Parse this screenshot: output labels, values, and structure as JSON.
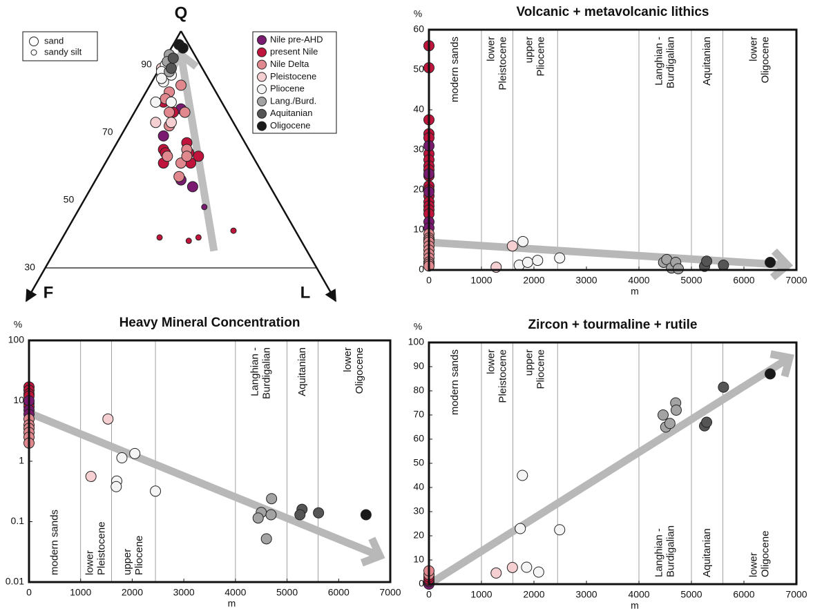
{
  "chart_data": [
    {
      "type": "ternary",
      "apex_labels": {
        "top": "Q",
        "left": "F",
        "right": "L"
      },
      "qticks": [
        90,
        70,
        50,
        30
      ],
      "texture_legend": [
        "sand",
        "sandy silt"
      ],
      "series": [
        {
          "name": "Nile pre-AHD",
          "color": "#7a1a70",
          "q": [
            77,
            69,
            56,
            54,
            48
          ],
          "f": [
            11.5,
            20,
            22,
            20,
            20
          ],
          "l": [
            11.5,
            11,
            22,
            26,
            32
          ],
          "texture": [
            "sand",
            "sand",
            "sand",
            "sand",
            "sandy silt"
          ]
        },
        {
          "name": "present Nile",
          "color": "#c0143c",
          "q": [
            79,
            76,
            67,
            64,
            65,
            64,
            61,
            63,
            61,
            39,
            38,
            39,
            41
          ],
          "f": [
            15,
            14,
            15,
            16,
            22,
            22,
            24,
            14,
            17,
            36,
            29,
            26,
            16
          ],
          "l": [
            6,
            10,
            18,
            20,
            13,
            14,
            15,
            23,
            22,
            25,
            33,
            35,
            43
          ],
          "texture": [
            "sand",
            "sand",
            "sand",
            "sand",
            "sand",
            "sand",
            "sand",
            "sand",
            "sand",
            "sandy silt",
            "sandy silt",
            "sandy silt",
            "sandy silt"
          ]
        },
        {
          "name": "Nile Delta",
          "color": "#e0888e",
          "q": [
            84,
            82,
            80,
            76,
            76,
            72,
            63,
            61,
            57,
            65,
            63
          ],
          "f": [
            8,
            12,
            14,
            15,
            11,
            17,
            22,
            19.5,
            22,
            16,
            17
          ],
          "l": [
            8,
            6,
            6,
            9,
            13,
            11,
            15,
            19.5,
            21,
            19,
            20
          ],
          "texture": [
            "sand",
            "sand",
            "sand",
            "sand",
            "sand",
            "sand",
            "sand",
            "sand",
            "sand",
            "sand",
            "sand"
          ]
        },
        {
          "name": "Pleistocene",
          "color": "#f6cfd2",
          "q": [
            73,
            89,
            73
          ],
          "f": [
            20,
            10.5,
            16
          ],
          "l": [
            7,
            0.5,
            11
          ],
          "texture": [
            "sand",
            "sand",
            "sand"
          ]
        },
        {
          "name": "Pliocene",
          "color": "#f5f5f5",
          "q": [
            90,
            88,
            87,
            85,
            79,
            79,
            86
          ],
          "f": [
            9,
            11,
            9,
            12,
            17,
            13,
            12
          ],
          "l": [
            1,
            1,
            4,
            3,
            4,
            8,
            2
          ],
          "texture": [
            "sand",
            "sand",
            "sand",
            "sand",
            "sand",
            "sand",
            "sand"
          ]
        },
        {
          "name": "Lang./Burd.",
          "color": "#a3a3a3",
          "q": [
            93,
            91,
            88
          ],
          "f": [
            6.5,
            8,
            9
          ],
          "l": [
            0.5,
            1,
            3
          ],
          "texture": [
            "sand",
            "sand",
            "sand"
          ]
        },
        {
          "name": "Aquitanian",
          "color": "#555555",
          "q": [
            89,
            92
          ],
          "f": [
            8,
            6
          ],
          "l": [
            3,
            2
          ],
          "texture": [
            "sand",
            "sand"
          ]
        },
        {
          "name": "Oligocene",
          "color": "#1a1a1a",
          "q": [
            96,
            95
          ],
          "f": [
            2.5,
            2
          ],
          "l": [
            1.5,
            3
          ],
          "texture": [
            "sand",
            "sand"
          ]
        }
      ],
      "trend_arrow": {
        "q": [
          35,
          93
        ],
        "f": [
          24,
          3.5
        ],
        "l": [
          41,
          3.5
        ]
      }
    },
    {
      "type": "scatter",
      "title": "Volcanic + metavolcanic lithics",
      "x_label": "m",
      "y_label": "%",
      "xlim": [
        0,
        7000
      ],
      "xticks": [
        0,
        1000,
        2000,
        3000,
        4000,
        5000,
        6000,
        7000
      ],
      "ylim": [
        0,
        60
      ],
      "yticks": [
        0,
        10,
        20,
        30,
        40,
        50,
        60
      ],
      "log_y": false,
      "zones": [
        {
          "lines": [
            "modern sands"
          ],
          "from": 0,
          "to": 1000,
          "anchor": "top"
        },
        {
          "lines": [
            "lower",
            "Pleistocene"
          ],
          "from": 1000,
          "to": 1600,
          "anchor": "top"
        },
        {
          "lines": [
            "upper",
            "Pliocene"
          ],
          "from": 1600,
          "to": 2450,
          "anchor": "top"
        },
        {
          "lines": [
            "Langhian -",
            "Burdigalian"
          ],
          "from": 4000,
          "to": 5000,
          "anchor": "top"
        },
        {
          "lines": [
            "Aquitanian"
          ],
          "from": 5000,
          "to": 5600,
          "anchor": "top"
        },
        {
          "lines": [
            "lower",
            "Oligocene"
          ],
          "from": 5600,
          "to": 7000,
          "anchor": "top"
        }
      ],
      "series": [
        {
          "color": "#c0143c",
          "x": [
            0,
            0,
            0,
            0,
            0,
            0,
            0,
            0,
            0,
            0,
            0,
            0,
            0,
            0,
            0,
            0,
            0
          ],
          "y": [
            56,
            50.5,
            37.5,
            34,
            33,
            29,
            27.5,
            26,
            25,
            23.5,
            21,
            20,
            18.5,
            17,
            16,
            15,
            14
          ]
        },
        {
          "color": "#7a1a70",
          "x": [
            0,
            0,
            0,
            0,
            0
          ],
          "y": [
            31,
            24,
            19.5,
            12,
            10.5
          ]
        },
        {
          "color": "#e0888e",
          "x": [
            0,
            0,
            0,
            0,
            0,
            0,
            0,
            0,
            0,
            0,
            0
          ],
          "y": [
            9,
            8,
            7.5,
            7,
            6,
            5,
            4,
            3,
            2,
            1.5,
            1
          ]
        },
        {
          "color": "#f6cfd2",
          "x": [
            1280,
            1590
          ],
          "y": [
            0.7,
            6
          ]
        },
        {
          "color": "#f5f5f5",
          "x": [
            1720,
            1790,
            1880,
            2070,
            2490
          ],
          "y": [
            1.2,
            7.1,
            1.9,
            2.4,
            3
          ]
        },
        {
          "color": "#a3a3a3",
          "x": [
            4470,
            4530,
            4620,
            4700,
            4750
          ],
          "y": [
            1.9,
            2.6,
            0.5,
            1.9,
            0.3
          ]
        },
        {
          "color": "#555555",
          "x": [
            5250,
            5290,
            5610
          ],
          "y": [
            0.9,
            2.2,
            1.2
          ]
        },
        {
          "color": "#1a1a1a",
          "x": [
            6500
          ],
          "y": [
            1.9
          ]
        }
      ],
      "trend_arrow": {
        "x": [
          0,
          6830
        ],
        "y": [
          6.9,
          1.2
        ]
      }
    },
    {
      "type": "scatter",
      "title": "Heavy Mineral Concentration",
      "x_label": "m",
      "y_label": "%",
      "xlim": [
        0,
        7000
      ],
      "xticks": [
        0,
        1000,
        2000,
        3000,
        4000,
        5000,
        6000,
        7000
      ],
      "ylim": [
        0.01,
        100
      ],
      "yticks": [
        0.01,
        0.1,
        1,
        10,
        100
      ],
      "log_y": true,
      "zones": [
        {
          "lines": [
            "modern sands"
          ],
          "from": 0,
          "to": 1000,
          "anchor": "bottom"
        },
        {
          "lines": [
            "lower",
            "Pleistocene"
          ],
          "from": 1000,
          "to": 1600,
          "anchor": "bottom"
        },
        {
          "lines": [
            "upper",
            "Pliocene"
          ],
          "from": 1600,
          "to": 2450,
          "anchor": "bottom"
        },
        {
          "lines": [
            "Langhian -",
            "Burdigalian"
          ],
          "from": 4000,
          "to": 5000,
          "anchor": "top"
        },
        {
          "lines": [
            "Aquitanian"
          ],
          "from": 5000,
          "to": 5600,
          "anchor": "top"
        },
        {
          "lines": [
            "lower",
            "Oligocene"
          ],
          "from": 5600,
          "to": 7000,
          "anchor": "top"
        }
      ],
      "series": [
        {
          "color": "#c0143c",
          "x": [
            0,
            0,
            0,
            0,
            0,
            0
          ],
          "y": [
            17,
            15,
            13,
            12,
            9,
            8
          ]
        },
        {
          "color": "#7a1a70",
          "x": [
            0,
            0,
            0
          ],
          "y": [
            10,
            7,
            6
          ]
        },
        {
          "color": "#e0888e",
          "x": [
            0,
            0,
            0,
            0,
            0,
            0
          ],
          "y": [
            5,
            4,
            3.5,
            3,
            2.5,
            2
          ]
        },
        {
          "color": "#f6cfd2",
          "x": [
            1200,
            1530
          ],
          "y": [
            0.56,
            5
          ]
        },
        {
          "color": "#f5f5f5",
          "x": [
            1700,
            1690,
            1800,
            2050,
            2450
          ],
          "y": [
            0.47,
            0.38,
            1.14,
            1.34,
            0.32
          ]
        },
        {
          "color": "#a3a3a3",
          "x": [
            4500,
            4440,
            4700,
            4690,
            4600
          ],
          "y": [
            0.142,
            0.115,
            0.24,
            0.13,
            0.052
          ]
        },
        {
          "color": "#555555",
          "x": [
            5290,
            5250,
            5610
          ],
          "y": [
            0.16,
            0.13,
            0.14
          ]
        },
        {
          "color": "#1a1a1a",
          "x": [
            6530
          ],
          "y": [
            0.13
          ]
        }
      ],
      "trend_arrow": {
        "x": [
          0,
          6800
        ],
        "y": [
          6.3,
          0.027
        ]
      }
    },
    {
      "type": "scatter",
      "title": "Zircon + tourmaline + rutile",
      "x_label": "m",
      "y_label": "%",
      "xlim": [
        0,
        7000
      ],
      "xticks": [
        0,
        1000,
        2000,
        3000,
        4000,
        5000,
        6000,
        7000
      ],
      "ylim": [
        0,
        100
      ],
      "yticks": [
        0,
        10,
        20,
        30,
        40,
        50,
        60,
        70,
        80,
        90,
        100
      ],
      "log_y": false,
      "zones": [
        {
          "lines": [
            "modern sands"
          ],
          "from": 0,
          "to": 1000,
          "anchor": "top"
        },
        {
          "lines": [
            "lower",
            "Pleistocene"
          ],
          "from": 1000,
          "to": 1600,
          "anchor": "top"
        },
        {
          "lines": [
            "upper",
            "Pliocene"
          ],
          "from": 1600,
          "to": 2450,
          "anchor": "top"
        },
        {
          "lines": [
            "Langhian -",
            "Burdigalian"
          ],
          "from": 4000,
          "to": 5000,
          "anchor": "bottom"
        },
        {
          "lines": [
            "Aquitanian"
          ],
          "from": 5000,
          "to": 5600,
          "anchor": "bottom"
        },
        {
          "lines": [
            "lower",
            "Oligocene"
          ],
          "from": 5600,
          "to": 7000,
          "anchor": "bottom"
        }
      ],
      "series": [
        {
          "color": "#7a1a70",
          "x": [
            0,
            0
          ],
          "y": [
            0,
            1
          ]
        },
        {
          "color": "#c0143c",
          "x": [
            0,
            0,
            0
          ],
          "y": [
            1.5,
            2,
            3
          ]
        },
        {
          "color": "#e0888e",
          "x": [
            0,
            0
          ],
          "y": [
            4,
            5.5
          ]
        },
        {
          "color": "#f6cfd2",
          "x": [
            1280,
            1590
          ],
          "y": [
            4.6,
            6.9
          ]
        },
        {
          "color": "#f5f5f5",
          "x": [
            1780,
            1740,
            1860,
            2090,
            2490
          ],
          "y": [
            45,
            23,
            7,
            5,
            22.5
          ]
        },
        {
          "color": "#a3a3a3",
          "x": [
            4460,
            4510,
            4590,
            4700,
            4710
          ],
          "y": [
            70,
            65,
            66.5,
            75,
            72
          ]
        },
        {
          "color": "#555555",
          "x": [
            5250,
            5290,
            5610
          ],
          "y": [
            65.5,
            67,
            81.5
          ]
        },
        {
          "color": "#1a1a1a",
          "x": [
            6500
          ],
          "y": [
            87
          ]
        }
      ],
      "trend_arrow": {
        "x": [
          0,
          6870
        ],
        "y": [
          0,
          93.7
        ]
      }
    }
  ]
}
